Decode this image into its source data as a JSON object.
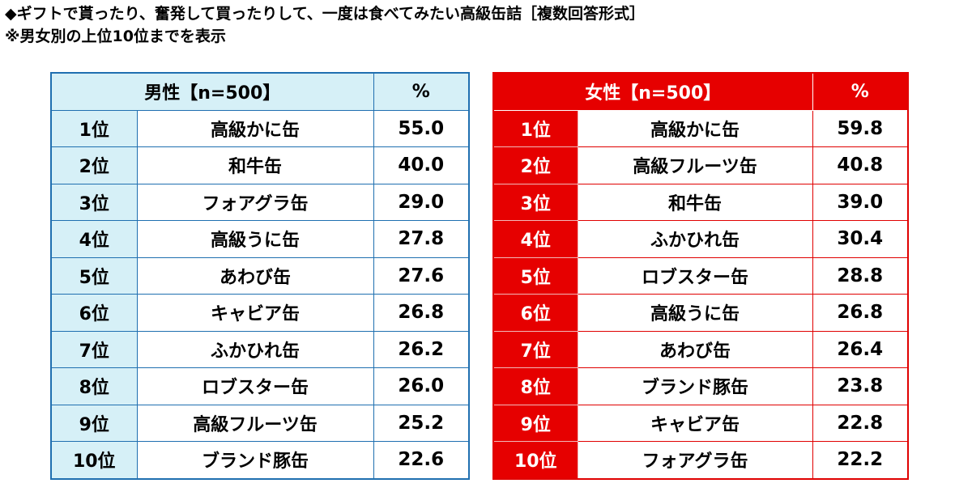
{
  "title_line1": "◆ギフトで貰ったり、奮発して買ったりして、一度は食べてみたい高級缶詰［複数回答形式］",
  "title_line2": "※男女別の上位10位までを表示",
  "chart_data": [
    {
      "type": "table",
      "header_label": "男性【n=500】",
      "percent_label": "%",
      "colors": {
        "border": "#1f6fb0",
        "fill": "#d6f0f7"
      },
      "rows": [
        {
          "rank": "1位",
          "item": "高級かに缶",
          "value": "55.0"
        },
        {
          "rank": "2位",
          "item": "和牛缶",
          "value": "40.0"
        },
        {
          "rank": "3位",
          "item": "フォアグラ缶",
          "value": "29.0"
        },
        {
          "rank": "4位",
          "item": "高級うに缶",
          "value": "27.8"
        },
        {
          "rank": "5位",
          "item": "あわび缶",
          "value": "27.6"
        },
        {
          "rank": "6位",
          "item": "キャビア缶",
          "value": "26.8"
        },
        {
          "rank": "7位",
          "item": "ふかひれ缶",
          "value": "26.2"
        },
        {
          "rank": "8位",
          "item": "ロブスター缶",
          "value": "26.0"
        },
        {
          "rank": "9位",
          "item": "高級フルーツ缶",
          "value": "25.2"
        },
        {
          "rank": "10位",
          "item": "ブランド豚缶",
          "value": "22.6"
        }
      ]
    },
    {
      "type": "table",
      "header_label": "女性【n=500】",
      "percent_label": "%",
      "colors": {
        "border": "#e00000",
        "fill": "#e60000"
      },
      "rows": [
        {
          "rank": "1位",
          "item": "高級かに缶",
          "value": "59.8"
        },
        {
          "rank": "2位",
          "item": "高級フルーツ缶",
          "value": "40.8"
        },
        {
          "rank": "3位",
          "item": "和牛缶",
          "value": "39.0"
        },
        {
          "rank": "4位",
          "item": "ふかひれ缶",
          "value": "30.4"
        },
        {
          "rank": "5位",
          "item": "ロブスター缶",
          "value": "28.8"
        },
        {
          "rank": "6位",
          "item": "高級うに缶",
          "value": "26.8"
        },
        {
          "rank": "7位",
          "item": "あわび缶",
          "value": "26.4"
        },
        {
          "rank": "8位",
          "item": "ブランド豚缶",
          "value": "23.8"
        },
        {
          "rank": "9位",
          "item": "キャビア缶",
          "value": "22.8"
        },
        {
          "rank": "10位",
          "item": "フォアグラ缶",
          "value": "22.2"
        }
      ]
    }
  ]
}
